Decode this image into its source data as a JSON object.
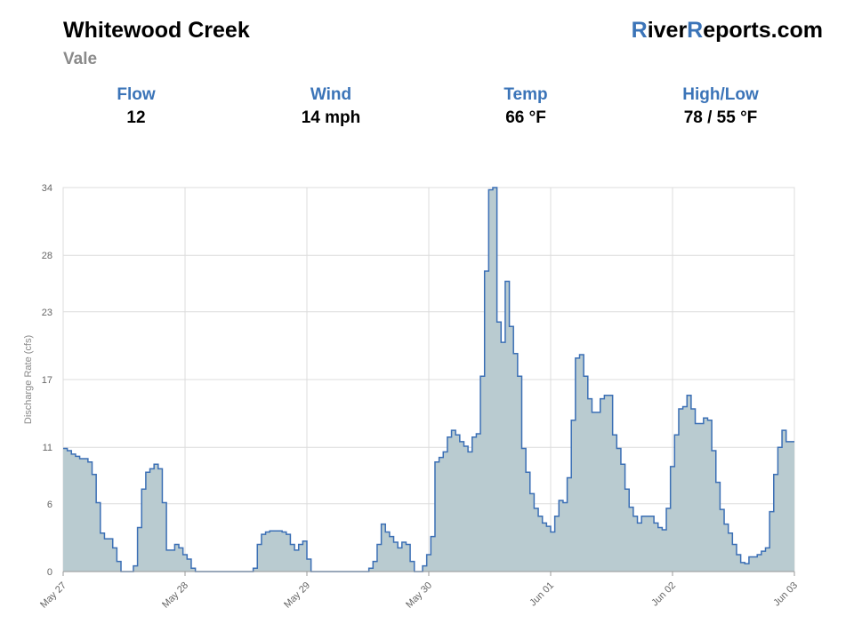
{
  "header": {
    "title": "Whitewood Creek",
    "subtitle": "Vale",
    "brand_parts": [
      "R",
      "iver",
      "R",
      "eports.com"
    ]
  },
  "stats": [
    {
      "label": "Flow",
      "value": "12"
    },
    {
      "label": "Wind",
      "value": "14 mph"
    },
    {
      "label": "Temp",
      "value": "66 °F"
    },
    {
      "label": "High/Low",
      "value": "78 / 55 °F"
    }
  ],
  "colors": {
    "accent": "#3b74b8",
    "line": "#3b6fb5",
    "fill": "#b9cbd0",
    "grid": "#dcdcdc"
  },
  "chart_data": {
    "type": "area",
    "step": true,
    "ylabel": "Discharge Rate (cfs)",
    "ylim": [
      0,
      34
    ],
    "yticks": [
      0,
      6,
      11,
      17,
      23,
      28,
      34
    ],
    "xlim": [
      0,
      6
    ],
    "xticks": [
      {
        "x": 0,
        "label": "May 27"
      },
      {
        "x": 1,
        "label": "May 28"
      },
      {
        "x": 2,
        "label": "May 29"
      },
      {
        "x": 3,
        "label": "May 30"
      },
      {
        "x": 4,
        "label": "Jun 01"
      },
      {
        "x": 5,
        "label": "Jun 02"
      },
      {
        "x": 6,
        "label": "Jun 03"
      }
    ],
    "grid": true,
    "legend": "none",
    "series": [
      {
        "values": [
          10.9,
          10.7,
          10.4,
          10.2,
          10,
          10,
          9.7,
          8.6,
          6.1,
          3.4,
          2.9,
          2.9,
          2.1,
          0.9,
          0,
          0,
          0,
          0.5,
          3.9,
          7.3,
          8.8,
          9.1,
          9.5,
          9.1,
          6.1,
          1.9,
          1.9,
          2.4,
          2.1,
          1.5,
          1.1,
          0.3,
          0,
          0,
          0,
          0,
          0,
          0,
          0,
          0,
          0,
          0,
          0,
          0,
          0,
          0,
          0.3,
          2.4,
          3.3,
          3.5,
          3.6,
          3.6,
          3.6,
          3.5,
          3.3,
          2.4,
          1.9,
          2.4,
          2.7,
          1.1,
          0,
          0,
          0,
          0,
          0,
          0,
          0,
          0,
          0,
          0,
          0,
          0,
          0,
          0,
          0.3,
          0.9,
          2.4,
          4.2,
          3.5,
          3.1,
          2.6,
          2.1,
          2.6,
          2.4,
          0.9,
          0,
          0,
          0.5,
          1.5,
          3.1,
          9.7,
          10.1,
          10.6,
          11.9,
          12.5,
          12.1,
          11.5,
          11.1,
          10.6,
          11.9,
          12.2,
          17.3,
          26.6,
          33.8,
          34.2,
          22.1,
          20.3,
          25.7,
          21.7,
          19.3,
          17.3,
          10.9,
          8.8,
          6.9,
          5.6,
          4.9,
          4.3,
          4,
          3.5,
          4.9,
          6.3,
          6.1,
          8.3,
          13.4,
          18.9,
          19.2,
          17.3,
          15.3,
          14.1,
          14.1,
          15.3,
          15.6,
          15.6,
          12.1,
          10.9,
          9.5,
          7.3,
          5.7,
          4.9,
          4.3,
          4.9,
          4.9,
          4.9,
          4.3,
          3.9,
          3.7,
          5.6,
          9.3,
          12.1,
          14.4,
          14.6,
          15.6,
          14.4,
          13.1,
          13.1,
          13.6,
          13.4,
          10.7,
          7.9,
          5.5,
          4.2,
          3.4,
          2.4,
          1.5,
          0.8,
          0.7,
          1.3,
          1.3,
          1.5,
          1.8,
          2.1,
          5.3,
          8.6,
          11,
          12.5,
          11.5,
          11.5
        ]
      }
    ]
  }
}
